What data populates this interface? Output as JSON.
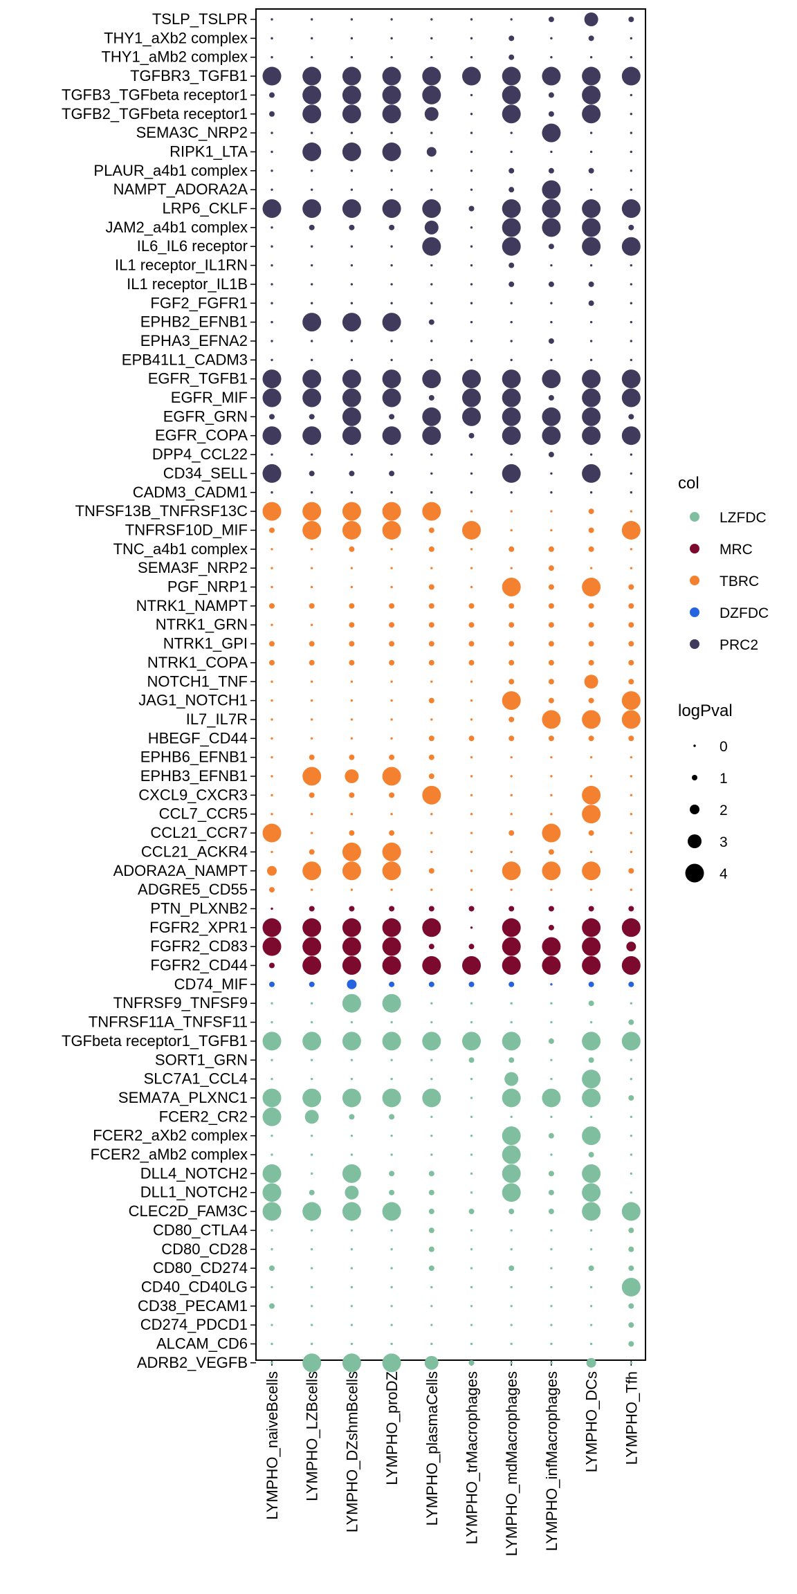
{
  "chart_data": {
    "type": "scatter",
    "subtype": "dot-matrix",
    "columns": [
      "LYMPHO_naiveBcells",
      "LYMPHO_LZBcells",
      "LYMPHO_DZshmBcells",
      "LYMPHO_proDZ",
      "LYMPHO_plasmaCells",
      "LYMPHO_trMacrophages",
      "LYMPHO_mdMacrophages",
      "LYMPHO_infMacrophages",
      "LYMPHO_DCs",
      "LYMPHO_Tfh"
    ],
    "color_legend": {
      "title": "col",
      "items": [
        {
          "label": "LZFDC",
          "color": "#7fbf9f"
        },
        {
          "label": "MRC",
          "color": "#7b0a2e"
        },
        {
          "label": "TBRC",
          "color": "#f4812f"
        },
        {
          "label": "DZFDC",
          "color": "#2563e0"
        },
        {
          "label": "PRC2",
          "color": "#403b5c"
        }
      ]
    },
    "size_legend": {
      "title": "logPval",
      "values": [
        0,
        1,
        2,
        3,
        4
      ]
    },
    "grid": false,
    "legend_position": "right",
    "rows": [
      {
        "label": "TSLP_TSLPR",
        "group": "PRC2",
        "logPval": [
          0,
          0,
          0,
          0,
          0,
          0,
          0,
          1.2,
          3,
          0.8
        ]
      },
      {
        "label": "THY1_aXb2 complex",
        "group": "PRC2",
        "logPval": [
          0,
          0,
          0,
          0,
          0,
          0,
          1,
          0,
          1,
          0
        ]
      },
      {
        "label": "THY1_aMb2 complex",
        "group": "PRC2",
        "logPval": [
          0,
          0,
          0,
          0,
          0,
          0,
          1,
          0,
          0,
          0
        ]
      },
      {
        "label": "TGFBR3_TGFB1",
        "group": "PRC2",
        "logPval": [
          4,
          4,
          4,
          4,
          4,
          4,
          4,
          4,
          4,
          4
        ]
      },
      {
        "label": "TGFB3_TGFbeta receptor1",
        "group": "PRC2",
        "logPval": [
          1,
          4,
          4,
          4,
          4,
          0,
          4,
          1,
          4,
          0
        ]
      },
      {
        "label": "TGFB2_TGFbeta receptor1",
        "group": "PRC2",
        "logPval": [
          1,
          4,
          4,
          4,
          3,
          0,
          4,
          1,
          4,
          0
        ]
      },
      {
        "label": "SEMA3C_NRP2",
        "group": "PRC2",
        "logPval": [
          0,
          0,
          0,
          0,
          0,
          0,
          0,
          4,
          0,
          0
        ]
      },
      {
        "label": "RIPK1_LTA",
        "group": "PRC2",
        "logPval": [
          0,
          4,
          4,
          4,
          2,
          0,
          0,
          0,
          0,
          0
        ]
      },
      {
        "label": "PLAUR_a4b1 complex",
        "group": "PRC2",
        "logPval": [
          0,
          0,
          0,
          0,
          0,
          0,
          1,
          1,
          1,
          0
        ]
      },
      {
        "label": "NAMPT_ADORA2A",
        "group": "PRC2",
        "logPval": [
          0,
          0,
          0,
          0,
          0,
          0,
          1,
          4,
          0,
          0
        ]
      },
      {
        "label": "LRP6_CKLF",
        "group": "PRC2",
        "logPval": [
          4,
          4,
          4,
          4,
          4,
          1,
          4,
          4,
          4,
          4
        ]
      },
      {
        "label": "JAM2_a4b1 complex",
        "group": "PRC2",
        "logPval": [
          0,
          1,
          1,
          1,
          3,
          0,
          4,
          4,
          4,
          1
        ]
      },
      {
        "label": "IL6_IL6 receptor",
        "group": "PRC2",
        "logPval": [
          0,
          0,
          0,
          0,
          4,
          0,
          4,
          1,
          4,
          4
        ]
      },
      {
        "label": "IL1 receptor_IL1RN",
        "group": "PRC2",
        "logPval": [
          0,
          0,
          0,
          0,
          0,
          0,
          1,
          0,
          0,
          0
        ]
      },
      {
        "label": "IL1 receptor_IL1B",
        "group": "PRC2",
        "logPval": [
          0,
          0,
          0,
          0,
          0,
          0,
          1,
          1,
          1,
          0
        ]
      },
      {
        "label": "FGF2_FGFR1",
        "group": "PRC2",
        "logPval": [
          0,
          0,
          0,
          0,
          0,
          0,
          0,
          0,
          1,
          0
        ]
      },
      {
        "label": "EPHB2_EFNB1",
        "group": "PRC2",
        "logPval": [
          0,
          4,
          4,
          4,
          1,
          0,
          0,
          0,
          0,
          0
        ]
      },
      {
        "label": "EPHA3_EFNA2",
        "group": "PRC2",
        "logPval": [
          0,
          0,
          0,
          0,
          0,
          0,
          0,
          1,
          0,
          0
        ]
      },
      {
        "label": "EPB41L1_CADM3",
        "group": "PRC2",
        "logPval": [
          0,
          0,
          0,
          0,
          0,
          0,
          0,
          0,
          0,
          0
        ]
      },
      {
        "label": "EGFR_TGFB1",
        "group": "PRC2",
        "logPval": [
          4,
          4,
          4,
          4,
          4,
          4,
          4,
          4,
          4,
          4
        ]
      },
      {
        "label": "EGFR_MIF",
        "group": "PRC2",
        "logPval": [
          4,
          4,
          4,
          4,
          1,
          4,
          4,
          1,
          4,
          4
        ]
      },
      {
        "label": "EGFR_GRN",
        "group": "PRC2",
        "logPval": [
          1,
          1,
          4,
          1,
          4,
          4,
          4,
          4,
          4,
          1
        ]
      },
      {
        "label": "EGFR_COPA",
        "group": "PRC2",
        "logPval": [
          4,
          4,
          4,
          4,
          4,
          1,
          4,
          4,
          4,
          4
        ]
      },
      {
        "label": "DPP4_CCL22",
        "group": "PRC2",
        "logPval": [
          0,
          0,
          0,
          0,
          0,
          0,
          0,
          1,
          0,
          0
        ]
      },
      {
        "label": "CD34_SELL",
        "group": "PRC2",
        "logPval": [
          4,
          1,
          1,
          1,
          0,
          0,
          4,
          0,
          4,
          0
        ]
      },
      {
        "label": "CADM3_CADM1",
        "group": "PRC2",
        "logPval": [
          0,
          0,
          0,
          0,
          0,
          0,
          0,
          0,
          0,
          0
        ]
      },
      {
        "label": "TNFSF13B_TNFRSF13C",
        "group": "TBRC",
        "logPval": [
          4,
          4,
          4,
          4,
          4,
          0,
          0,
          0,
          1,
          0
        ]
      },
      {
        "label": "TNFRSF10D_MIF",
        "group": "TBRC",
        "logPval": [
          1,
          4,
          4,
          4,
          1,
          4,
          0,
          0,
          1,
          4
        ]
      },
      {
        "label": "TNC_a4b1 complex",
        "group": "TBRC",
        "logPval": [
          0,
          0,
          1,
          0,
          1,
          0,
          1,
          1,
          1,
          0
        ]
      },
      {
        "label": "SEMA3F_NRP2",
        "group": "TBRC",
        "logPval": [
          0,
          0,
          0,
          0,
          0,
          0,
          0,
          1,
          0,
          0
        ]
      },
      {
        "label": "PGF_NRP1",
        "group": "TBRC",
        "logPval": [
          0,
          0,
          0,
          0,
          1,
          0,
          4,
          1,
          4,
          1
        ]
      },
      {
        "label": "NTRK1_NAMPT",
        "group": "TBRC",
        "logPval": [
          1,
          1,
          1,
          1,
          1,
          1,
          1,
          1,
          1,
          1
        ]
      },
      {
        "label": "NTRK1_GRN",
        "group": "TBRC",
        "logPval": [
          0,
          0,
          1,
          1,
          1,
          1,
          1,
          1,
          1,
          1
        ]
      },
      {
        "label": "NTRK1_GPI",
        "group": "TBRC",
        "logPval": [
          1,
          1,
          1,
          1,
          1,
          1,
          1,
          1,
          1,
          1
        ]
      },
      {
        "label": "NTRK1_COPA",
        "group": "TBRC",
        "logPval": [
          1,
          1,
          1,
          1,
          1,
          1,
          1,
          1,
          1,
          1
        ]
      },
      {
        "label": "NOTCH1_TNF",
        "group": "TBRC",
        "logPval": [
          0,
          0,
          0,
          0,
          0,
          0,
          1,
          1,
          3,
          1
        ]
      },
      {
        "label": "JAG1_NOTCH1",
        "group": "TBRC",
        "logPval": [
          0,
          0,
          0,
          0,
          1,
          0,
          4,
          1,
          1,
          4
        ]
      },
      {
        "label": "IL7_IL7R",
        "group": "TBRC",
        "logPval": [
          0,
          0,
          0,
          0,
          0,
          0,
          1,
          4,
          4,
          4
        ]
      },
      {
        "label": "HBEGF_CD44",
        "group": "TBRC",
        "logPval": [
          0,
          0,
          0,
          0,
          1,
          1,
          1,
          1,
          1,
          1
        ]
      },
      {
        "label": "EPHB6_EFNB1",
        "group": "TBRC",
        "logPval": [
          0,
          1,
          1,
          1,
          1,
          0,
          0,
          0,
          0,
          0
        ]
      },
      {
        "label": "EPHB3_EFNB1",
        "group": "TBRC",
        "logPval": [
          0,
          4,
          3,
          4,
          1,
          0,
          0,
          0,
          0,
          0
        ]
      },
      {
        "label": "CXCL9_CXCR3",
        "group": "TBRC",
        "logPval": [
          0,
          1,
          1,
          1,
          4,
          0,
          0,
          0,
          4,
          0
        ]
      },
      {
        "label": "CCL7_CCR5",
        "group": "TBRC",
        "logPval": [
          0,
          0,
          0,
          0,
          0,
          0,
          0,
          0,
          4,
          0
        ]
      },
      {
        "label": "CCL21_CCR7",
        "group": "TBRC",
        "logPval": [
          4,
          0,
          1,
          1,
          0,
          0,
          1,
          4,
          1,
          0
        ]
      },
      {
        "label": "CCL21_ACKR4",
        "group": "TBRC",
        "logPval": [
          0,
          1,
          4,
          4,
          0,
          0,
          0,
          1,
          0,
          0
        ]
      },
      {
        "label": "ADORA2A_NAMPT",
        "group": "TBRC",
        "logPval": [
          2,
          4,
          4,
          4,
          1,
          0,
          4,
          4,
          4,
          1
        ]
      },
      {
        "label": "ADGRE5_CD55",
        "group": "TBRC",
        "logPval": [
          1,
          0,
          0,
          0,
          0,
          0,
          0,
          0,
          0,
          0
        ]
      },
      {
        "label": "PTN_PLXNB2",
        "group": "MRC",
        "logPval": [
          0,
          1,
          1,
          1,
          1,
          1,
          1,
          1,
          1,
          1
        ]
      },
      {
        "label": "FGFR2_XPR1",
        "group": "MRC",
        "logPval": [
          4,
          4,
          4,
          4,
          4,
          0,
          4,
          1,
          4,
          4
        ]
      },
      {
        "label": "FGFR2_CD83",
        "group": "MRC",
        "logPval": [
          4,
          4,
          4,
          4,
          1,
          1,
          4,
          4,
          4,
          2
        ]
      },
      {
        "label": "FGFR2_CD44",
        "group": "MRC",
        "logPval": [
          1,
          4,
          4,
          4,
          4,
          4,
          4,
          4,
          4,
          4
        ]
      },
      {
        "label": "CD74_MIF",
        "group": "DZFDC",
        "logPval": [
          1,
          1,
          2,
          1,
          1,
          1,
          1,
          0,
          1,
          1
        ]
      },
      {
        "label": "TNFRSF9_TNFSF9",
        "group": "LZFDC",
        "logPval": [
          0,
          0,
          4,
          4,
          0,
          0,
          0,
          0,
          1,
          0
        ]
      },
      {
        "label": "TNFRSF11A_TNFSF11",
        "group": "LZFDC",
        "logPval": [
          0,
          0,
          0,
          0,
          0,
          0,
          0,
          0,
          0,
          1
        ]
      },
      {
        "label": "TGFbeta receptor1_TGFB1",
        "group": "LZFDC",
        "logPval": [
          4,
          4,
          4,
          4,
          4,
          4,
          4,
          1,
          4,
          4
        ]
      },
      {
        "label": "SORT1_GRN",
        "group": "LZFDC",
        "logPval": [
          0,
          0,
          0,
          0,
          0,
          1,
          1,
          0,
          1,
          0
        ]
      },
      {
        "label": "SLC7A1_CCL4",
        "group": "LZFDC",
        "logPval": [
          0,
          0,
          0,
          0,
          0,
          0,
          3,
          0,
          4,
          0
        ]
      },
      {
        "label": "SEMA7A_PLXNC1",
        "group": "LZFDC",
        "logPval": [
          4,
          4,
          4,
          4,
          4,
          0,
          4,
          4,
          4,
          1
        ]
      },
      {
        "label": "FCER2_CR2",
        "group": "LZFDC",
        "logPval": [
          4,
          3,
          1,
          1,
          0,
          0,
          0,
          0,
          0,
          0
        ]
      },
      {
        "label": "FCER2_aXb2 complex",
        "group": "LZFDC",
        "logPval": [
          0,
          0,
          0,
          0,
          0,
          0,
          4,
          1,
          4,
          0
        ]
      },
      {
        "label": "FCER2_aMb2 complex",
        "group": "LZFDC",
        "logPval": [
          0,
          0,
          0,
          0,
          0,
          0,
          4,
          0,
          1,
          0
        ]
      },
      {
        "label": "DLL4_NOTCH2",
        "group": "LZFDC",
        "logPval": [
          4,
          0,
          4,
          1,
          1,
          0,
          4,
          1,
          4,
          0
        ]
      },
      {
        "label": "DLL1_NOTCH2",
        "group": "LZFDC",
        "logPval": [
          4,
          1,
          3,
          1,
          1,
          0,
          4,
          1,
          4,
          0
        ]
      },
      {
        "label": "CLEC2D_FAM3C",
        "group": "LZFDC",
        "logPval": [
          4,
          4,
          4,
          4,
          1,
          1,
          1,
          1,
          4,
          4
        ]
      },
      {
        "label": "CD80_CTLA4",
        "group": "LZFDC",
        "logPval": [
          0,
          0,
          0,
          0,
          1,
          0,
          0,
          0,
          0,
          1
        ]
      },
      {
        "label": "CD80_CD28",
        "group": "LZFDC",
        "logPval": [
          0,
          0,
          0,
          0,
          1,
          0,
          0,
          0,
          0,
          1
        ]
      },
      {
        "label": "CD80_CD274",
        "group": "LZFDC",
        "logPval": [
          1,
          0,
          0,
          0,
          1,
          0,
          1,
          0,
          1,
          1
        ]
      },
      {
        "label": "CD40_CD40LG",
        "group": "LZFDC",
        "logPval": [
          0,
          0,
          0,
          0,
          0,
          0,
          0,
          0,
          0,
          4
        ]
      },
      {
        "label": "CD38_PECAM1",
        "group": "LZFDC",
        "logPval": [
          1,
          0,
          0,
          0,
          0,
          0,
          0,
          0,
          0,
          1
        ]
      },
      {
        "label": "CD274_PDCD1",
        "group": "LZFDC",
        "logPval": [
          0,
          0,
          0,
          0,
          0,
          0,
          0,
          0,
          0,
          1
        ]
      },
      {
        "label": "ALCAM_CD6",
        "group": "LZFDC",
        "logPval": [
          0,
          0,
          0,
          0,
          0,
          0,
          0,
          0,
          0,
          1
        ]
      },
      {
        "label": "ADRB2_VEGFB",
        "group": "LZFDC",
        "logPval": [
          0,
          4,
          4,
          4,
          3,
          1,
          0,
          0,
          2,
          0
        ]
      }
    ]
  }
}
